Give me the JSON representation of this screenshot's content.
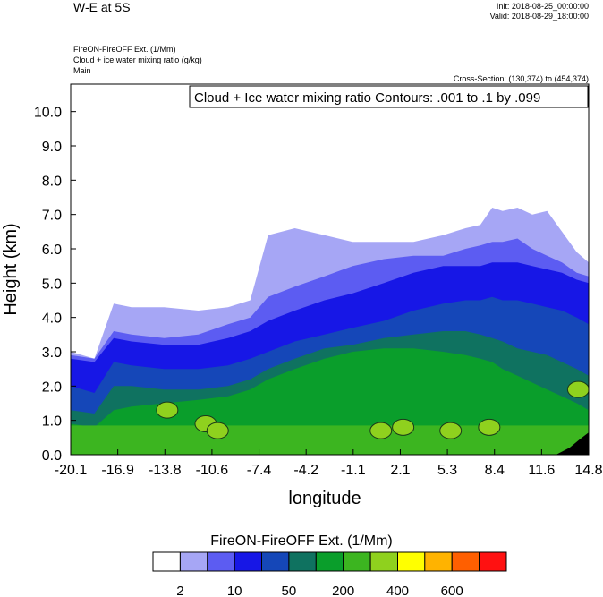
{
  "header": {
    "title": "W-E at 5S",
    "init": "Init: 2018-08-25_00:00:00",
    "valid": "Valid: 2018-08-29_18:00:00"
  },
  "subtitles": [
    "FireON-FireOFF Ext.   (1/Mm)",
    "Cloud + ice water mixing ratio   (g/kg)",
    "Main"
  ],
  "cross_section": "Cross-Section: (130,374) to (454,374)",
  "contour_label": "Cloud + Ice water mixing ratio Contours: .001 to .1 by .099",
  "colors": {
    "levels": [
      "#ffffff",
      "#a6a6f5",
      "#5c5cf2",
      "#1717e6",
      "#1547b8",
      "#0f7260",
      "#0a9e2b",
      "#3cb520",
      "#8fd11e",
      "#ffff00",
      "#ffb300",
      "#ff5f00",
      "#ff1111"
    ],
    "terrain": "#000000"
  },
  "chart_data": {
    "type": "heatmap",
    "xlabel": "longitude",
    "ylabel": "Height (km)",
    "xlim": [
      -20.1,
      14.8
    ],
    "ylim": [
      0.0,
      10.8
    ],
    "x_ticks": [
      "-20.1",
      "-16.9",
      "-13.8",
      "-10.6",
      "-7.4",
      "-4.2",
      "-1.1",
      "2.1",
      "5.3",
      "8.4",
      "11.6",
      "14.8"
    ],
    "y_ticks": [
      "0.0",
      "1.0",
      "2.0",
      "3.0",
      "4.0",
      "5.0",
      "6.0",
      "7.0",
      "8.0",
      "9.0",
      "10.0"
    ],
    "colorbar": {
      "title": "FireON-FireOFF Ext.  (1/Mm)",
      "labels": [
        "2",
        "10",
        "50",
        "200",
        "400",
        "600"
      ]
    },
    "layer_tops_km": {
      "x": [
        -20.1,
        -18.5,
        -17.2,
        -16.0,
        -13.8,
        -11.5,
        -9.5,
        -8.0,
        -6.8,
        -5.0,
        -3.0,
        -1.1,
        1.0,
        3.0,
        5.0,
        6.5,
        7.5,
        8.3,
        9.0,
        10.0,
        11.0,
        12.0,
        13.0,
        14.0,
        14.8
      ],
      "lightest": [
        3.0,
        2.8,
        4.4,
        4.3,
        4.3,
        4.2,
        4.3,
        4.5,
        6.4,
        6.6,
        6.4,
        6.2,
        6.2,
        6.2,
        6.4,
        6.6,
        6.7,
        7.2,
        7.1,
        7.2,
        7.0,
        7.1,
        6.5,
        5.9,
        5.6
      ],
      "light": [
        2.9,
        2.8,
        3.6,
        3.5,
        3.4,
        3.5,
        3.8,
        4.0,
        4.6,
        4.9,
        5.2,
        5.5,
        5.7,
        5.8,
        5.8,
        6.0,
        6.1,
        6.2,
        6.2,
        6.3,
        6.0,
        5.8,
        5.6,
        5.3,
        5.2
      ],
      "blue": [
        2.8,
        2.7,
        3.4,
        3.3,
        3.2,
        3.2,
        3.4,
        3.6,
        3.9,
        4.2,
        4.5,
        4.7,
        5.0,
        5.3,
        5.5,
        5.5,
        5.5,
        5.6,
        5.6,
        5.6,
        5.5,
        5.4,
        5.3,
        5.1,
        5.0
      ],
      "dark_blue": [
        2.0,
        1.8,
        2.7,
        2.6,
        2.5,
        2.5,
        2.6,
        2.8,
        3.0,
        3.3,
        3.5,
        3.7,
        3.9,
        4.2,
        4.4,
        4.5,
        4.5,
        4.6,
        4.5,
        4.5,
        4.4,
        4.3,
        4.2,
        4.0,
        3.8
      ],
      "teal": [
        1.3,
        1.2,
        2.0,
        2.0,
        1.9,
        1.9,
        2.0,
        2.2,
        2.5,
        2.8,
        3.1,
        3.2,
        3.4,
        3.5,
        3.6,
        3.6,
        3.5,
        3.4,
        3.3,
        3.1,
        3.0,
        2.9,
        2.7,
        2.5,
        2.3
      ],
      "green": [
        0.9,
        0.8,
        1.3,
        1.4,
        1.5,
        1.6,
        1.7,
        1.9,
        2.2,
        2.5,
        2.8,
        3.0,
        3.1,
        3.1,
        3.0,
        2.9,
        2.8,
        2.7,
        2.5,
        2.3,
        2.1,
        1.9,
        1.7,
        1.5,
        1.3
      ]
    }
  }
}
